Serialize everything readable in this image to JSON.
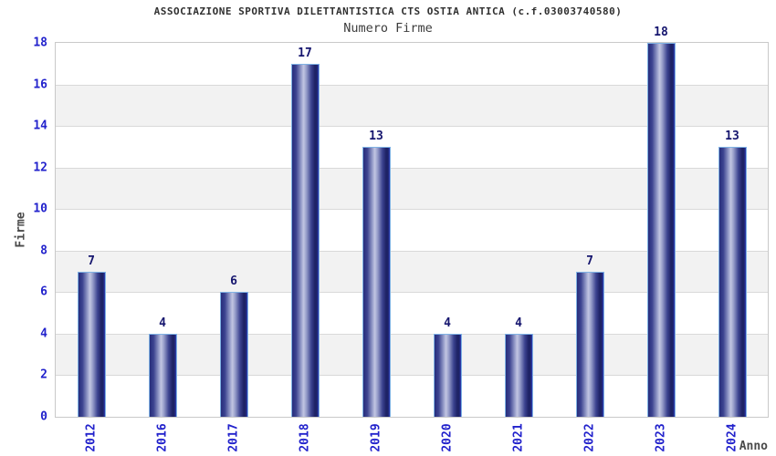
{
  "page": {
    "background": "#ffffff"
  },
  "chart_data": {
    "type": "bar",
    "title": "ASSOCIAZIONE SPORTIVA DILETTANTISTICA CTS OSTIA ANTICA (c.f.03003740580)",
    "subtitle": "Numero Firme",
    "xlabel": "Anno",
    "ylabel": "Firme",
    "categories": [
      "2012",
      "2016",
      "2017",
      "2018",
      "2019",
      "2020",
      "2021",
      "2022",
      "2023",
      "2024"
    ],
    "values": [
      7,
      4,
      6,
      17,
      13,
      4,
      4,
      7,
      18,
      13
    ],
    "ylim": [
      0,
      18
    ],
    "ytick_step": 2,
    "yticks": [
      0,
      2,
      4,
      6,
      8,
      10,
      12,
      14,
      16,
      18
    ],
    "legend": "none",
    "grid": "horizontal-bands-alternating",
    "colors": {
      "title": "#303030",
      "subtitle": "#3c3c3c",
      "axis_title": "#4a4a4a",
      "tick_label": "#2222cc",
      "value_label": "#15156e",
      "band_light": "#ffffff",
      "band_dark": "#f2f2f2",
      "gridline": "#d9d9d9",
      "plot_border": "#c9c9c9",
      "bar_border": "#7fb2e4",
      "bar_dark": "#272d7c",
      "bar_dark2": "#3c4390",
      "bar_mid": "#9aa1cc",
      "bar_light": "#c2c6e2",
      "bar_deep": "#1e2366",
      "bar_edge_bright": "#2e3cb8"
    }
  }
}
